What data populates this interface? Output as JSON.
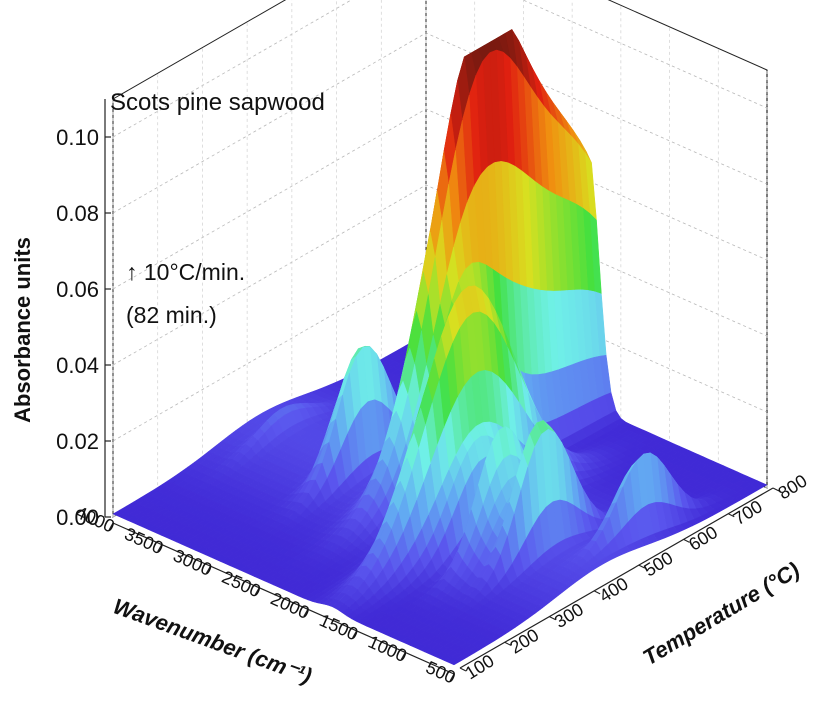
{
  "chart_data": {
    "type": "3d-surface",
    "title": "Scots pine sapwood",
    "annotation_rate": "↑ 10°C/min.",
    "annotation_duration": "(82 min.)",
    "zlabel": "Absorbance units",
    "xlabel": "Wavenumber (cm⁻¹)",
    "ylabel": "Temperature (°C)",
    "zlim": [
      0.0,
      0.11
    ],
    "z_ticks": [
      "0.00",
      "0.02",
      "0.04",
      "0.06",
      "0.08",
      "0.10"
    ],
    "x_ticks": [
      "4000",
      "3500",
      "3000",
      "2500",
      "2000",
      "1500",
      "1000",
      "500"
    ],
    "y_ticks": [
      "100",
      "200",
      "300",
      "400",
      "500",
      "600",
      "700",
      "800"
    ],
    "xlim": [
      4000,
      500
    ],
    "ylim": [
      100,
      800
    ],
    "peaks": [
      {
        "wavenumber": 3735,
        "temperature": 420,
        "absorbance": 0.005
      },
      {
        "wavenumber": 3000,
        "temperature": 430,
        "absorbance": 0.022
      },
      {
        "wavenumber": 2900,
        "temperature": 420,
        "absorbance": 0.028
      },
      {
        "wavenumber": 2350,
        "temperature": 560,
        "absorbance": 0.111
      },
      {
        "wavenumber": 2330,
        "temperature": 780,
        "absorbance": 0.06
      },
      {
        "wavenumber": 2180,
        "temperature": 480,
        "absorbance": 0.015
      },
      {
        "wavenumber": 2120,
        "temperature": 480,
        "absorbance": 0.026
      },
      {
        "wavenumber": 1750,
        "temperature": 400,
        "absorbance": 0.061
      },
      {
        "wavenumber": 1520,
        "temperature": 380,
        "absorbance": 0.018
      },
      {
        "wavenumber": 1300,
        "temperature": 380,
        "absorbance": 0.03
      },
      {
        "wavenumber": 1180,
        "temperature": 380,
        "absorbance": 0.016
      },
      {
        "wavenumber": 1050,
        "temperature": 400,
        "absorbance": 0.018
      },
      {
        "wavenumber": 1010,
        "temperature": 420,
        "absorbance": 0.021
      },
      {
        "wavenumber": 670,
        "temperature": 560,
        "absorbance": 0.023
      }
    ],
    "grid": true,
    "colormap": [
      "#3a1fd0",
      "#5a55ee",
      "#62a8f2",
      "#6ff0e8",
      "#40e040",
      "#d8e020",
      "#f09010",
      "#e02010",
      "#7a1a10"
    ]
  }
}
